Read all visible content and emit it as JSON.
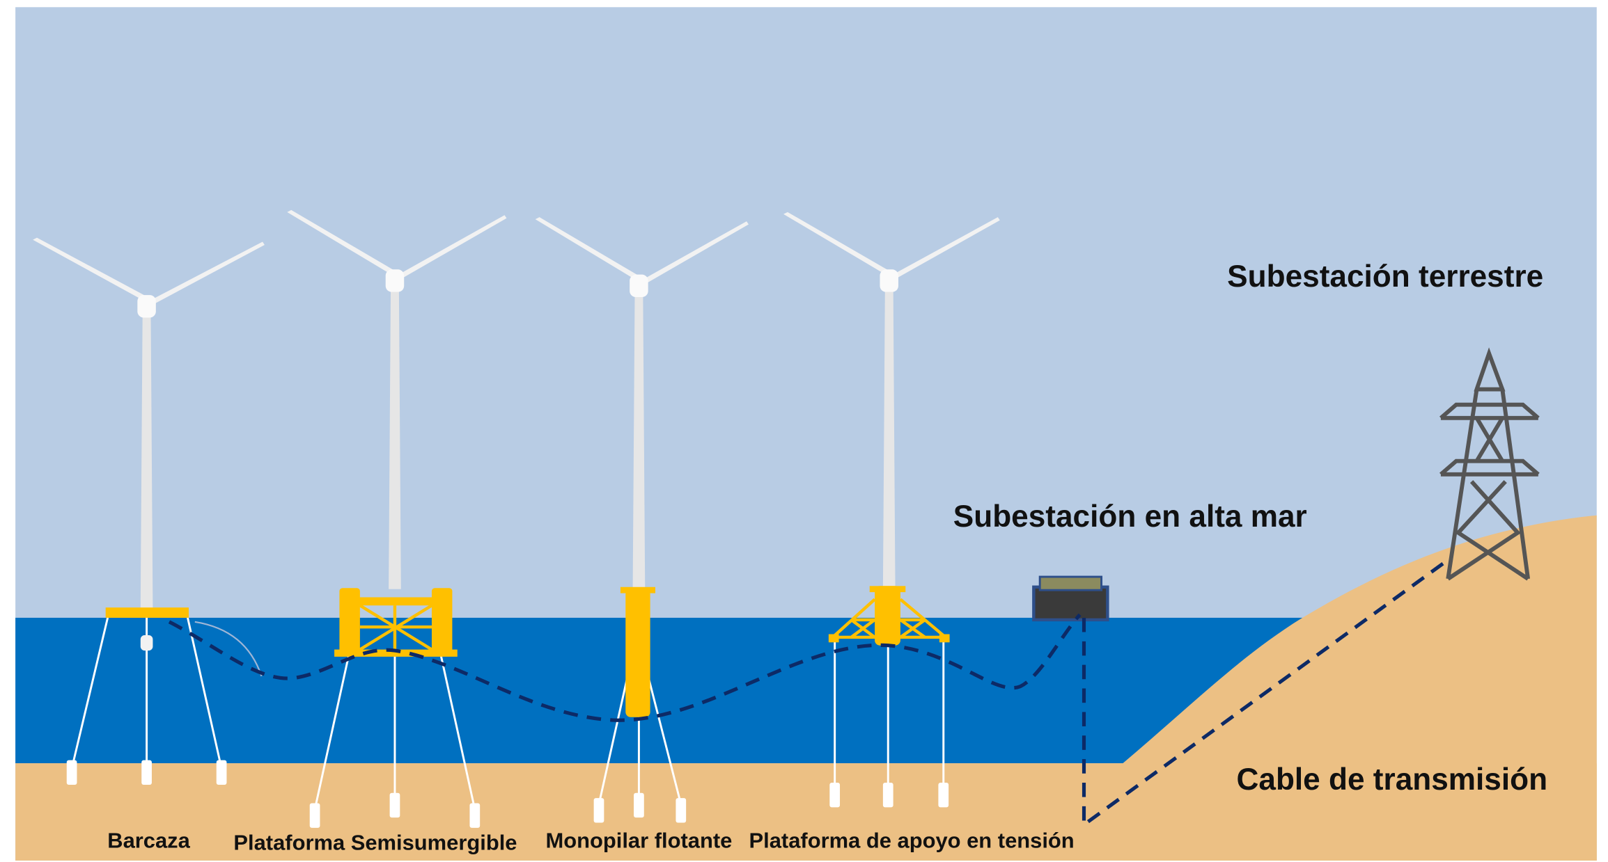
{
  "labels": {
    "onshore_substation": "Subestación terrestre",
    "offshore_substation": "Subestación en alta mar",
    "cable": "Cable de transmisión"
  },
  "platforms": [
    "Barcaza",
    "Plataforma Semisumergible",
    "Monopilar flotante",
    "Plataforma de apoyo en tensión"
  ]
}
